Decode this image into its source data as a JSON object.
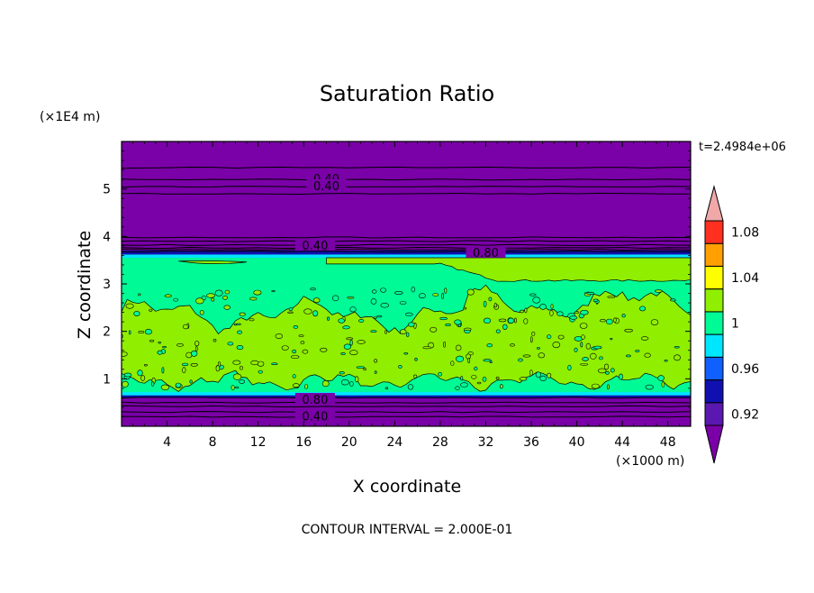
{
  "chart_data": {
    "type": "heatmap",
    "subtype": "filled-contour",
    "title": "Saturation Ratio",
    "xlabel": "X coordinate",
    "ylabel": "Z coordinate",
    "x_unit_label": "(×1000 m)",
    "y_unit_label": "(×1E4 m)",
    "time_label": "t=2.4984e+06",
    "footer": "CONTOUR INTERVAL = 2.000E-01",
    "xlim": [
      0,
      50
    ],
    "ylim": [
      0,
      6
    ],
    "x_ticks": [
      4,
      8,
      12,
      16,
      20,
      24,
      28,
      32,
      36,
      40,
      44,
      48
    ],
    "y_ticks": [
      1,
      2,
      3,
      4,
      5
    ],
    "colorbar": {
      "levels": [
        0.92,
        0.94,
        0.96,
        0.98,
        1.0,
        1.02,
        1.04,
        1.06,
        1.08,
        1.1
      ],
      "tick_labels": [
        "0.92",
        "0.96",
        "1",
        "1.04",
        "1.08"
      ],
      "colors": {
        "below": "#7a00a8",
        "0.92-0.94": "#5a18b0",
        "0.94-0.96": "#1010b0",
        "0.96-0.98": "#1060ff",
        "0.98-1.00": "#00e6ff",
        "1.00-1.02": "#00fa96",
        "1.02-1.04": "#90ee00",
        "1.04-1.06": "#ffff00",
        "1.06-1.08": "#ffa000",
        "1.08-1.10": "#ff3020",
        "above": "#f0a8a8"
      }
    },
    "regions": [
      {
        "name": "lower-dry-layer",
        "z_range": [
          0.0,
          0.65
        ],
        "level": "below"
      },
      {
        "name": "mixed-cloud-layer",
        "z_range": [
          0.65,
          3.55
        ],
        "level": "1.00-1.04"
      },
      {
        "name": "upper-dry-layer",
        "z_range": [
          3.6,
          6.0
        ],
        "level": "below"
      }
    ],
    "contour_labels": [
      {
        "text": "0.40",
        "x": 18,
        "z": 5.2
      },
      {
        "text": "0.40",
        "x": 18,
        "z": 5.05
      },
      {
        "text": "0.40",
        "x": 17,
        "z": 3.8
      },
      {
        "text": "0.80",
        "x": 32,
        "z": 3.65
      },
      {
        "text": "0.80",
        "x": 17,
        "z": 0.55
      },
      {
        "text": "0.40",
        "x": 17,
        "z": 0.2
      }
    ]
  }
}
